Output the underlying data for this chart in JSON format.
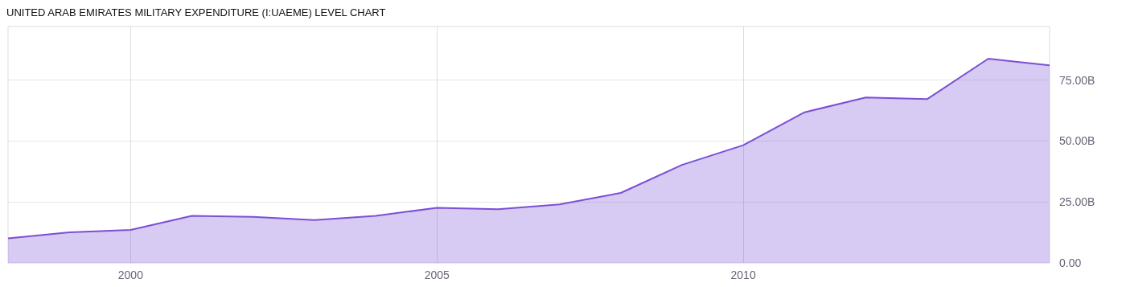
{
  "chart_data": {
    "type": "area",
    "title": "UNITED ARAB EMIRATES MILITARY EXPENDITURE (I:UAEME) LEVEL CHART",
    "x": [
      1998,
      1999,
      2000,
      2001,
      2002,
      2003,
      2004,
      2005,
      2006,
      2007,
      2008,
      2009,
      2010,
      2011,
      2012,
      2013,
      2014,
      2015
    ],
    "series": [
      {
        "color": "#7b4fd6",
        "values": [
          10.1,
          12.5,
          13.5,
          19.3,
          18.9,
          17.6,
          19.3,
          22.6,
          22.0,
          24.0,
          28.7,
          40.2,
          48.3,
          61.8,
          67.9,
          67.2,
          83.8,
          81.1
        ]
      }
    ],
    "xlim": [
      1998,
      2015
    ],
    "xticks": [
      2000,
      2005,
      2010
    ],
    "ylim": [
      0,
      97
    ],
    "yticks": [
      {
        "value": 0,
        "label": "0.00"
      },
      {
        "value": 25,
        "label": "25.00B"
      },
      {
        "value": 50,
        "label": "50.00B"
      },
      {
        "value": 75,
        "label": "75.00B"
      }
    ],
    "grid": true,
    "marker": "none",
    "line_style": "solid"
  }
}
